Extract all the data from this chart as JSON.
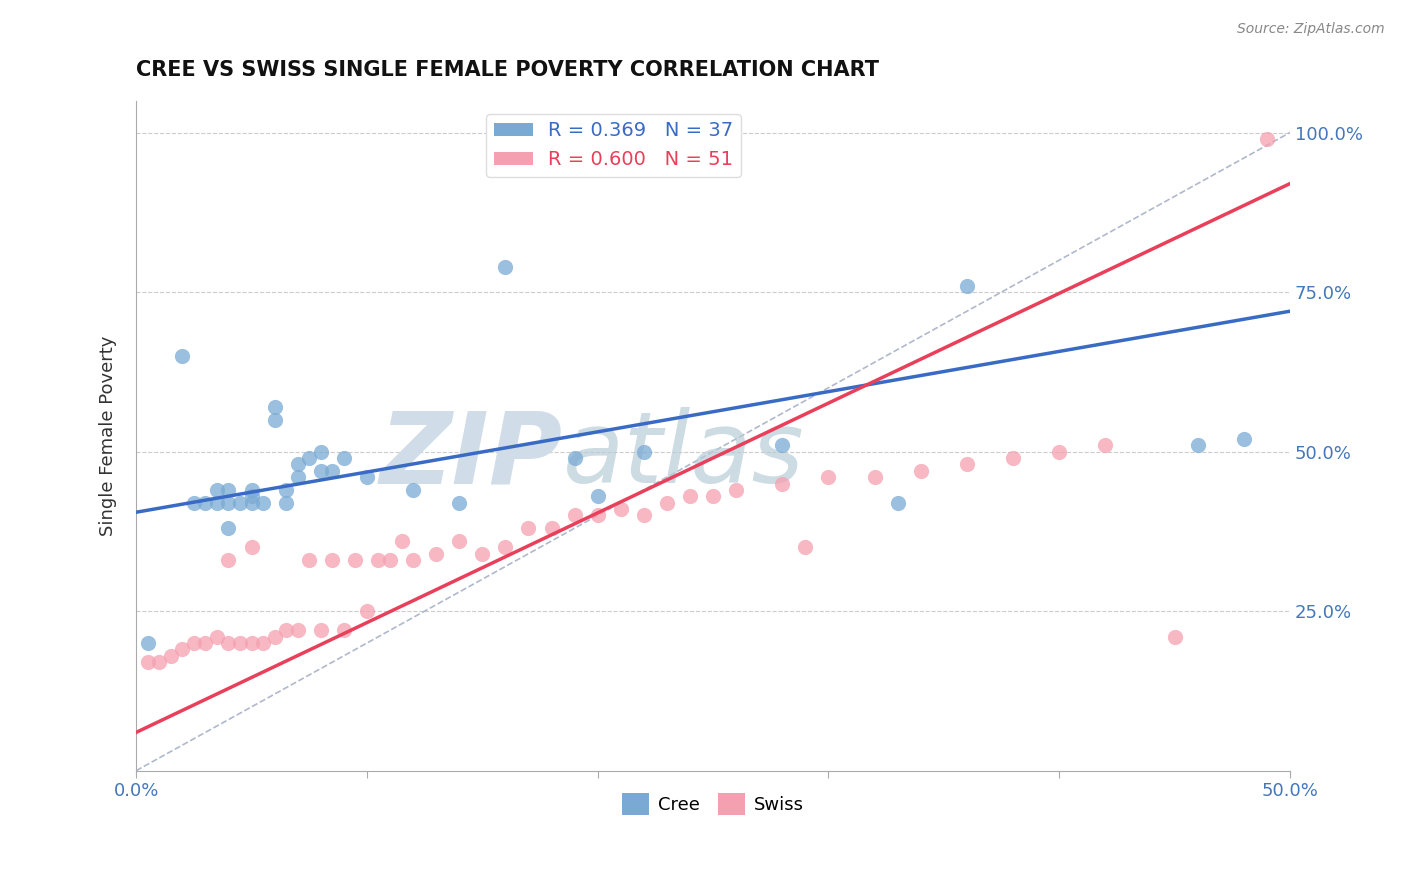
{
  "title": "CREE VS SWISS SINGLE FEMALE POVERTY CORRELATION CHART",
  "source_text": "Source: ZipAtlas.com",
  "ylabel": "Single Female Poverty",
  "xlim": [
    0.0,
    0.5
  ],
  "ylim": [
    0.0,
    1.05
  ],
  "cree_R": 0.369,
  "cree_N": 37,
  "swiss_R": 0.6,
  "swiss_N": 51,
  "cree_color": "#7aaad4",
  "swiss_color": "#f5a0b0",
  "cree_line_color": "#3a6bc4",
  "swiss_line_color": "#e8405a",
  "diagonal_color": "#b0b8cc",
  "watermark_color": "#d0dde8",
  "cree_x": [
    0.005,
    0.02,
    0.025,
    0.03,
    0.035,
    0.035,
    0.04,
    0.04,
    0.04,
    0.045,
    0.05,
    0.05,
    0.05,
    0.055,
    0.06,
    0.06,
    0.065,
    0.065,
    0.07,
    0.07,
    0.075,
    0.08,
    0.08,
    0.085,
    0.09,
    0.1,
    0.12,
    0.14,
    0.16,
    0.19,
    0.2,
    0.22,
    0.28,
    0.33,
    0.36,
    0.46,
    0.48
  ],
  "cree_y": [
    0.2,
    0.65,
    0.42,
    0.42,
    0.42,
    0.44,
    0.38,
    0.42,
    0.44,
    0.42,
    0.42,
    0.43,
    0.44,
    0.42,
    0.55,
    0.57,
    0.42,
    0.44,
    0.46,
    0.48,
    0.49,
    0.47,
    0.5,
    0.47,
    0.49,
    0.46,
    0.44,
    0.42,
    0.79,
    0.49,
    0.43,
    0.5,
    0.51,
    0.42,
    0.76,
    0.51,
    0.52
  ],
  "swiss_x": [
    0.005,
    0.01,
    0.015,
    0.02,
    0.025,
    0.03,
    0.035,
    0.04,
    0.04,
    0.045,
    0.05,
    0.05,
    0.055,
    0.06,
    0.065,
    0.07,
    0.075,
    0.08,
    0.085,
    0.09,
    0.095,
    0.1,
    0.105,
    0.11,
    0.115,
    0.12,
    0.13,
    0.14,
    0.15,
    0.16,
    0.17,
    0.18,
    0.19,
    0.2,
    0.21,
    0.22,
    0.23,
    0.24,
    0.25,
    0.26,
    0.28,
    0.29,
    0.3,
    0.32,
    0.34,
    0.36,
    0.38,
    0.4,
    0.42,
    0.45,
    0.49
  ],
  "swiss_y": [
    0.17,
    0.17,
    0.18,
    0.19,
    0.2,
    0.2,
    0.21,
    0.2,
    0.33,
    0.2,
    0.2,
    0.35,
    0.2,
    0.21,
    0.22,
    0.22,
    0.33,
    0.22,
    0.33,
    0.22,
    0.33,
    0.25,
    0.33,
    0.33,
    0.36,
    0.33,
    0.34,
    0.36,
    0.34,
    0.35,
    0.38,
    0.38,
    0.4,
    0.4,
    0.41,
    0.4,
    0.42,
    0.43,
    0.43,
    0.44,
    0.45,
    0.35,
    0.46,
    0.46,
    0.47,
    0.48,
    0.49,
    0.5,
    0.51,
    0.21,
    0.99
  ],
  "cree_line_x": [
    0.0,
    0.5
  ],
  "cree_line_y": [
    0.405,
    0.72
  ],
  "swiss_line_x": [
    0.0,
    0.5
  ],
  "swiss_line_y": [
    0.06,
    0.92
  ]
}
